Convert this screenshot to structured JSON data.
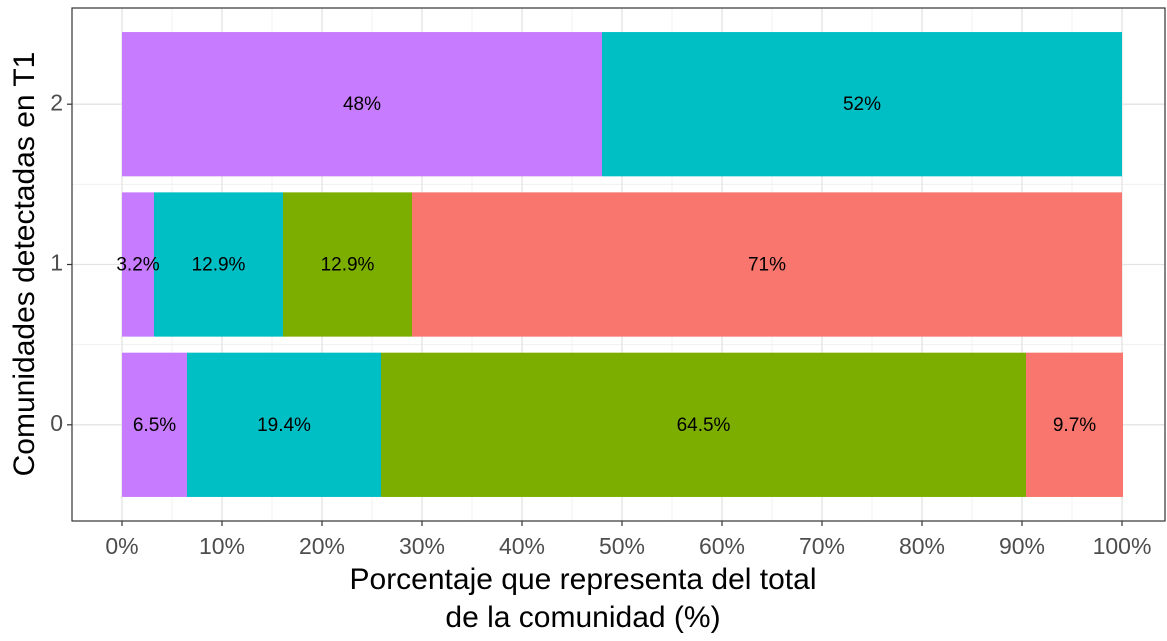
{
  "chart_data": {
    "type": "stacked-barh",
    "ylabel": "Comunidades detectadas en T1",
    "xlabel": [
      "Porcentaje que representa del total",
      "de la comunidad (%)"
    ],
    "categories": [
      "0",
      "1",
      "2"
    ],
    "series": [
      {
        "color": "#C77CFF",
        "values": [
          6.5,
          3.2,
          48
        ],
        "value_labels": [
          "6.5%",
          "3.2%",
          "48%"
        ]
      },
      {
        "color": "#00BFC4",
        "values": [
          19.4,
          12.9,
          52
        ],
        "value_labels": [
          "19.4%",
          "12.9%",
          "52%"
        ]
      },
      {
        "color": "#7CAE00",
        "values": [
          64.5,
          12.9,
          null
        ],
        "value_labels": [
          "64.5%",
          "12.9%",
          null
        ]
      },
      {
        "color": "#F8766D",
        "values": [
          9.7,
          71,
          null
        ],
        "value_labels": [
          "9.7%",
          "71%",
          null
        ]
      }
    ],
    "xlim": [
      -5,
      104.3
    ],
    "xticks": [
      {
        "value": 0,
        "label": "0%"
      },
      {
        "value": 10,
        "label": "10%"
      },
      {
        "value": 20,
        "label": "20%"
      },
      {
        "value": 30,
        "label": "30%"
      },
      {
        "value": 40,
        "label": "40%"
      },
      {
        "value": 50,
        "label": "50%"
      },
      {
        "value": 60,
        "label": "60%"
      },
      {
        "value": 70,
        "label": "70%"
      },
      {
        "value": 80,
        "label": "80%"
      },
      {
        "value": 90,
        "label": "90%"
      },
      {
        "value": 100,
        "label": "100%"
      }
    ],
    "grid": true
  }
}
